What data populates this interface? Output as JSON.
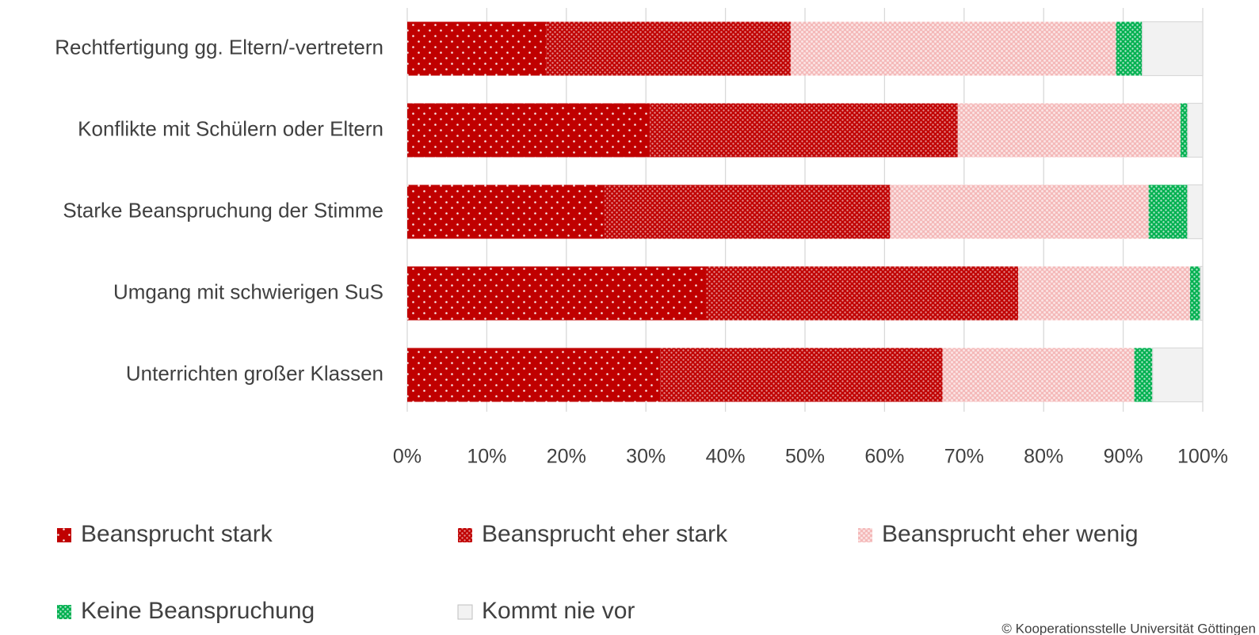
{
  "chart_data": {
    "type": "stacked-bar-horizontal",
    "categories": [
      "Rechtfertigung gg. Eltern/-vertretern",
      "Konflikte mit Schülern oder Eltern",
      "Starke Beanspruchung der Stimme",
      "Umgang mit schwierigen SuS",
      "Unterrichten großer Klassen"
    ],
    "series": [
      {
        "name": "Beansprucht stark",
        "color": "#c00000",
        "values": [
          17.5,
          30.5,
          24.8,
          37.5,
          31.8
        ]
      },
      {
        "name": "Beansprucht eher stark",
        "color": "#c00000",
        "values": [
          30.7,
          38.7,
          35.9,
          39.3,
          35.5
        ]
      },
      {
        "name": "Beansprucht eher wenig",
        "color": "#f4b9b9",
        "values": [
          40.9,
          28.0,
          32.5,
          21.6,
          24.1
        ]
      },
      {
        "name": "Keine Beanspruchung",
        "color": "#00b050",
        "values": [
          3.3,
          0.9,
          4.9,
          1.3,
          2.3
        ]
      },
      {
        "name": "Kommt nie vor",
        "color": "#f2f2f2",
        "values": [
          7.6,
          1.9,
          1.9,
          0.3,
          6.3
        ]
      }
    ],
    "xlim": [
      0,
      100
    ],
    "xticks": [
      {
        "value": 0,
        "label": "0%"
      },
      {
        "value": 10,
        "label": "10%"
      },
      {
        "value": 20,
        "label": "20%"
      },
      {
        "value": 30,
        "label": "30%"
      },
      {
        "value": 40,
        "label": "40%"
      },
      {
        "value": 50,
        "label": "50%"
      },
      {
        "value": 60,
        "label": "60%"
      },
      {
        "value": 70,
        "label": "70%"
      },
      {
        "value": 80,
        "label": "80%"
      },
      {
        "value": 90,
        "label": "90%"
      },
      {
        "value": 100,
        "label": "100%"
      }
    ],
    "grid": true,
    "legend": "bottom",
    "source": "© Kooperationsstelle Universität Göttingen"
  }
}
